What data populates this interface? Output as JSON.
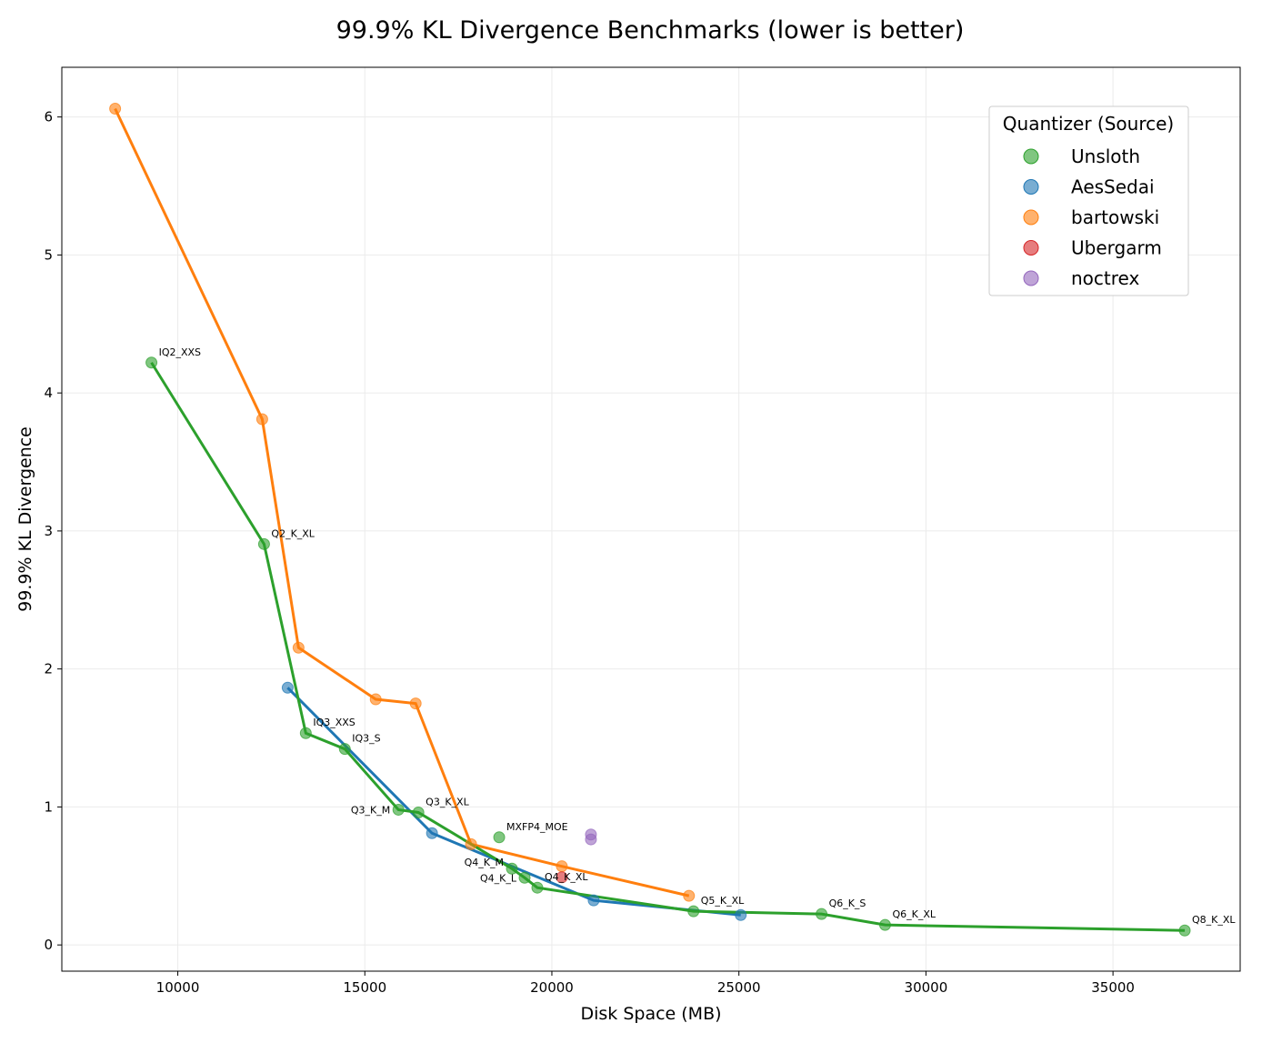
{
  "chart_data": {
    "type": "line",
    "title": "99.9% KL Divergence Benchmarks (lower is better)",
    "xlabel": "Disk Space (MB)",
    "ylabel": "99.9% KL Divergence",
    "xlim": [
      6900,
      38400
    ],
    "ylim": [
      -0.19,
      6.36
    ],
    "xticks": [
      10000,
      15000,
      20000,
      25000,
      30000,
      35000
    ],
    "yticks": [
      0,
      1,
      2,
      3,
      4,
      5,
      6
    ],
    "grid": true,
    "legend": {
      "title": "Quantizer (Source)",
      "placement": "top-right"
    },
    "series": [
      {
        "name": "Unsloth",
        "color": "#2ca02c",
        "points": [
          {
            "x": 9296,
            "y": 4.22,
            "label": "IQ2_XXS",
            "line": true
          },
          {
            "x": 12306,
            "y": 2.905,
            "label": "Q2_K_XL",
            "line": true
          },
          {
            "x": 13422,
            "y": 1.535,
            "label": "IQ3_XXS",
            "line": true
          },
          {
            "x": 14466,
            "y": 1.42,
            "label": "IQ3_S",
            "line": true
          },
          {
            "x": 15898,
            "y": 0.98,
            "label": "Q3_K_M",
            "line": true
          },
          {
            "x": 16432,
            "y": 0.96,
            "label": "Q3_K_XL",
            "line": true
          },
          {
            "x": 18592,
            "y": 0.78,
            "label": "MXFP4_MOE",
            "line": false
          },
          {
            "x": 18932,
            "y": 0.553,
            "label": "Q4_K_M",
            "line": true
          },
          {
            "x": 19272,
            "y": 0.487,
            "label": "Q4_K_L",
            "line": true
          },
          {
            "x": 19612,
            "y": 0.415,
            "label": "Q4_K_XL",
            "line": true
          },
          {
            "x": 23786,
            "y": 0.244,
            "label": "Q5_K_XL",
            "line": true
          },
          {
            "x": 27209,
            "y": 0.224,
            "label": "Q6_K_S",
            "line": true
          },
          {
            "x": 28908,
            "y": 0.145,
            "label": "Q6_K_XL",
            "line": true
          },
          {
            "x": 36918,
            "y": 0.105,
            "label": "Q8_K_XL",
            "line": true
          }
        ]
      },
      {
        "name": "AesSedai",
        "color": "#1f77b4",
        "points": [
          {
            "x": 12937,
            "y": 1.864,
            "line": true
          },
          {
            "x": 16796,
            "y": 0.81,
            "line": true
          },
          {
            "x": 21117,
            "y": 0.323,
            "line": true
          },
          {
            "x": 25049,
            "y": 0.217,
            "line": true
          }
        ]
      },
      {
        "name": "bartowski",
        "color": "#ff7f0e",
        "points": [
          {
            "x": 8325,
            "y": 6.06,
            "line": true
          },
          {
            "x": 12257,
            "y": 3.81,
            "line": true
          },
          {
            "x": 13228,
            "y": 2.154,
            "line": true
          },
          {
            "x": 15291,
            "y": 1.78,
            "line": true
          },
          {
            "x": 16359,
            "y": 1.75,
            "line": true
          },
          {
            "x": 17840,
            "y": 0.73,
            "line": true
          },
          {
            "x": 20267,
            "y": 0.57,
            "line": true
          },
          {
            "x": 23665,
            "y": 0.356,
            "line": true
          }
        ]
      },
      {
        "name": "Ubergarm",
        "color": "#d62728",
        "points": [
          {
            "x": 20267,
            "y": 0.49,
            "line": false
          }
        ]
      },
      {
        "name": "noctrex",
        "color": "#9467bd",
        "points": [
          {
            "x": 21044,
            "y": 0.8,
            "line": false
          },
          {
            "x": 21044,
            "y": 0.765,
            "line": false
          }
        ]
      }
    ]
  }
}
